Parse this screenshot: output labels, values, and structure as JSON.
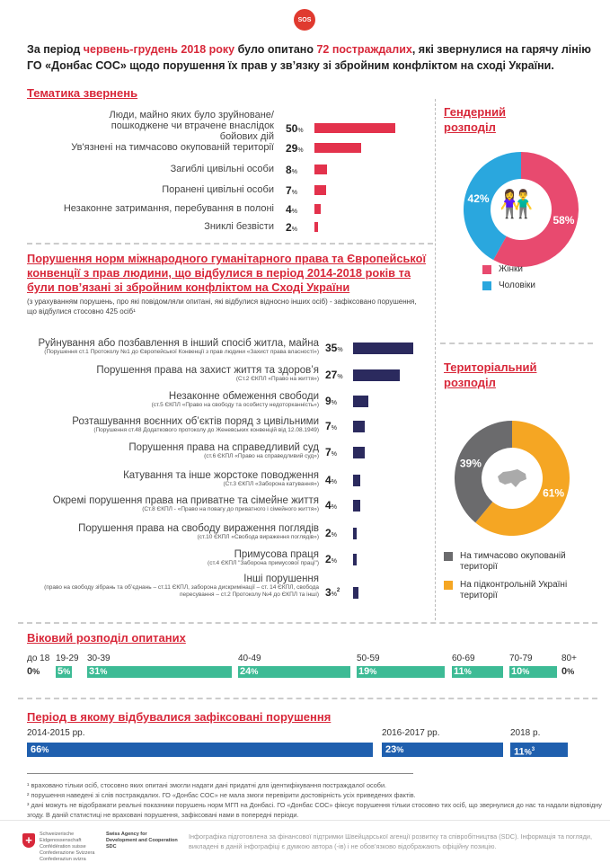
{
  "logo": "SOS",
  "intro": {
    "p1": "За період ",
    "p2": "червень-грудень 2018 року",
    "p3": "  було опитано ",
    "p4": "72 постраждалих",
    "p5": ", які звернулися на гарячу лінію ГО «Донбас СОС» щодо порушення їх прав у зв’язку зі збройним конфліктом на сході України."
  },
  "topics": {
    "title": "Тематика звернень",
    "items": [
      {
        "label": "Люди, майно яких було зруйноване/пошкоджене чи втрачене внаслідок бойових дій",
        "value": 50
      },
      {
        "label": "Ув'язнені на тимчасово окупованій території",
        "value": 29
      },
      {
        "label": "Загиблі цивільні особи",
        "value": 8
      },
      {
        "label": "Поранені цивільні особи",
        "value": 7
      },
      {
        "label": "Незаконне затримання, перебування в полоні",
        "value": 4
      },
      {
        "label": "Зниклі безвісти",
        "value": 2
      }
    ]
  },
  "violations": {
    "title": "Порушення норм міжнародного гуманітарного права та Європейської конвенції з прав людини,  що відбулися в період 2014-2018 років та були пов’язані зі збройним конфліктом на Сході України",
    "subtitle": "(з урахуванням порушень, про які повідомляли опитані, які відбулися відносно інших осіб) - зафіксовано порушення, що відбулися стосовно 425 осіб¹",
    "items": [
      {
        "label": "Руйнування або позбавлення в інший спосіб житла, майна",
        "sub": "(Порушення ст.1 Протоколу №1 до Європейської Конвенції з прав людини «Захист права власності»)",
        "value": 35,
        "note": ""
      },
      {
        "label": "Порушення права на захист життя та здоров’я",
        "sub": "(Ст.2 ЄКПЛ «Право на життя»)",
        "value": 27,
        "note": ""
      },
      {
        "label": "Незаконне обмеження свободи",
        "sub": "(ст.5 ЄКПЛ «Право на свободу та особисту недоторканність»)",
        "value": 9,
        "note": ""
      },
      {
        "label": "Розташування воєнних об’єктів поряд з цивільними",
        "sub": "(Порушення ст.48 Додаткового протоколу до Женевських конвенцій від 12.08.1949)",
        "value": 7,
        "note": ""
      },
      {
        "label": "Порушення права на справедливий суд",
        "sub": "(ст.6 ЄКПЛ «Право на справедливий суд»)",
        "value": 7,
        "note": ""
      },
      {
        "label": "Катування та інше жорстоке поводження",
        "sub": "(Ст.3 ЄКПЛ «Заборона катування»)",
        "value": 4,
        "note": ""
      },
      {
        "label": "Окремі порушення права на приватне та сімейне життя",
        "sub": "(Ст.8 ЄКПЛ - «Право на повагу до приватного і сімейного життя»)",
        "value": 4,
        "note": ""
      },
      {
        "label": "Порушення права на свободу вираження поглядів",
        "sub": "(ст.10 ЄКПЛ «Свобода вираження поглядів»)",
        "value": 2,
        "note": ""
      },
      {
        "label": "Примусова праця",
        "sub": "(ст.4 ЄКПЛ \"Заборона примусової праці\")",
        "value": 2,
        "note": ""
      },
      {
        "label": "Інші порушення",
        "sub": "(право на свободу зібрань та об’єднань – ст.11 ЄКПЛ, заборона дискримінації – ст. 14 ЄКПЛ, свобода пересування – ст.2 Протоколу №4 до ЄКПЛ та інші)",
        "value": 3,
        "note": "2"
      }
    ]
  },
  "gender": {
    "title1": "Гендерний",
    "title2": "розподіл",
    "slices": [
      {
        "label": "Жінки",
        "value": 58,
        "color": "#e84a6f"
      },
      {
        "label": "Чоловіки",
        "value": 42,
        "color": "#2aa7de"
      }
    ],
    "center_icon": "people-icon"
  },
  "territory": {
    "title1": "Територіальний",
    "title2": "розподіл",
    "slices": [
      {
        "label": "На підконтрольній Україні території",
        "value": 61,
        "color": "#f5a623"
      },
      {
        "label": "На тимчасово окупованій території",
        "value": 39,
        "color": "#6b6b6d"
      }
    ],
    "center_icon": "ukraine-map-icon"
  },
  "age": {
    "title": "Віковий розподіл опитаних",
    "groups": [
      {
        "label": "до 18",
        "value": 0
      },
      {
        "label": "19-29",
        "value": 5
      },
      {
        "label": "30-39",
        "value": 31
      },
      {
        "label": "40-49",
        "value": 24
      },
      {
        "label": "50-59",
        "value": 19
      },
      {
        "label": "60-69",
        "value": 11
      },
      {
        "label": "70-79",
        "value": 10
      },
      {
        "label": "80+",
        "value": 0
      }
    ]
  },
  "period": {
    "title": "Період  в якому відбувалися зафіксовані порушення",
    "groups": [
      {
        "label": "2014-2015 рр.",
        "value": 66,
        "note": ""
      },
      {
        "label": "2016-2017 рр.",
        "value": 23,
        "note": ""
      },
      {
        "label": "2018 р.",
        "value": 11,
        "note": "3"
      }
    ]
  },
  "notes": [
    "¹ враховано тільки осіб,  стосовно яких опитані змогли надати дані придатні для ідентифікування постраждалої особи.",
    "² порушення наведені зі слів постраждалих. ГО «Донбас СОС» не мала змоги перевірити достовірність усіх приведених фактів.",
    "³ дані можуть не відображати реальні показники  порушень норм МГП на Донбасі.  ГО «Донбас СОС» фіксує порушення тільки стосовно тих осіб, що звернулися до нас та надали відповідну  згоду. В даній статистиці не враховані порушення, зафіксовані нами в попередні періоди."
  ],
  "footer": {
    "swiss_names": "Schweizerische Eidgenossenschaft Confédération suisse Confederazione Svizzera Confederaziun svizra",
    "sdc": "Swiss Agency for Development and Cooperation SDC",
    "disclaimer": "Інфографіка підготовлена за фінансової підтримки Швейцарської агенції розвитку та співробітництва (SDC). Інформація та погляди, викладені в даній інфографіці є думкою автора (-ів) і не обов’язково відображають офіційну позицію."
  },
  "colors": {
    "accent": "#d8283a",
    "topics_bar": "#e3324c",
    "violations_bar": "#2b2a5e",
    "age_bar": "#3dbb95",
    "period_bar": "#1f5fae"
  }
}
